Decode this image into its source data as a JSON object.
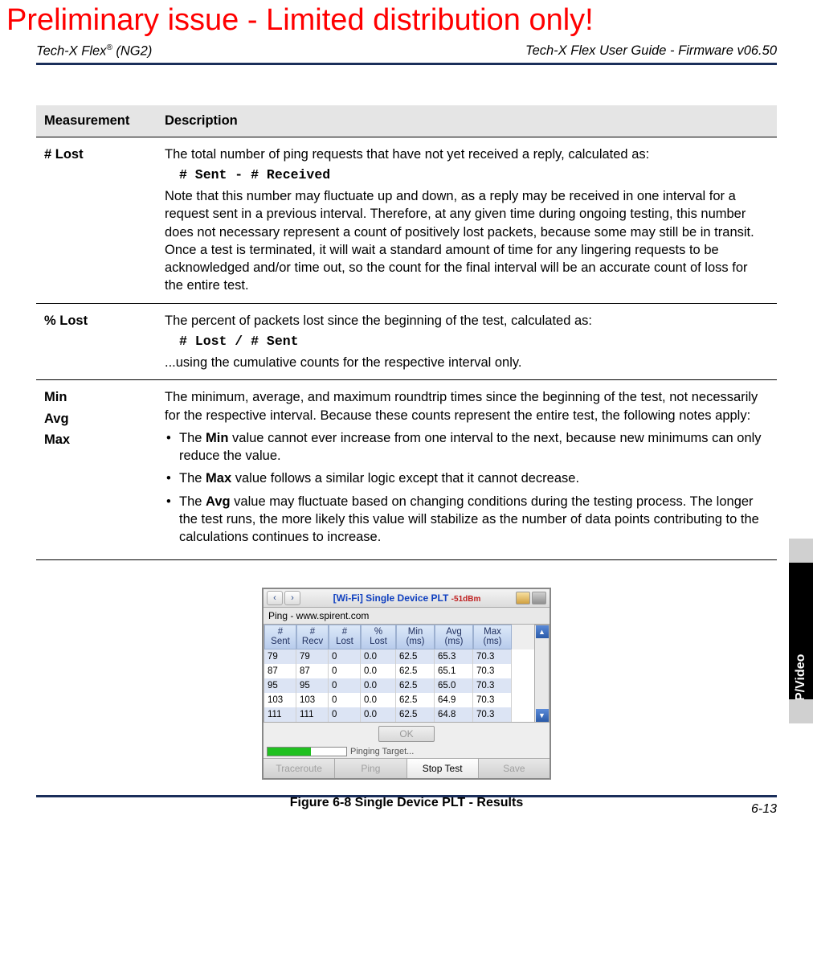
{
  "watermark": "Preliminary issue - Limited distribution only!",
  "header": {
    "left_prefix": " Tech-X Flex",
    "left_suffix": " (NG2)",
    "reg": "®",
    "right": "Tech-X Flex User Guide - Firmware v06.50"
  },
  "table": {
    "head_measurement": "Measurement",
    "head_description": "Description",
    "row1": {
      "label": "# Lost",
      "p1": "The total number of ping requests that have not yet received a reply, calculated as:",
      "code": "# Sent - # Received",
      "p2": "Note that this number may fluctuate up and down, as a reply may be received in one interval for a request sent in a previous interval. Therefore, at any given time during ongoing testing, this number does not necessary represent a count of positively lost packets, because some may still be in transit. Once a test is terminated, it will wait a standard amount of time for any lingering requests to be acknowledged and/or time out, so the count for the final interval will be an accurate count of loss for the entire test."
    },
    "row2": {
      "label": "% Lost",
      "p1": "The percent of packets lost since the beginning of the test, calculated as:",
      "code": "# Lost / # Sent",
      "p2": "...using the cumulative counts for the respective interval only."
    },
    "row3": {
      "l1": "Min",
      "l2": "Avg",
      "l3": "Max",
      "p1": "The minimum, average, and maximum roundtrip times since the beginning of the test, not necessarily for the respective interval. Because these counts represent the entire test, the following notes apply:",
      "b1a": "The ",
      "b1b": "Min",
      "b1c": " value cannot ever increase from one interval to the next, because new minimums can only reduce the value.",
      "b2a": "The ",
      "b2b": "Max",
      "b2c": " value follows a similar logic except that it cannot decrease.",
      "b3a": "The ",
      "b3b": "Avg",
      "b3c": " value may fluctuate based on changing conditions during the testing process. The longer the test runs, the more likely this value will stabilize as the number of data points contributing to the calculations continues to increase."
    }
  },
  "screenshot": {
    "title": "[Wi-Fi] Single Device PLT",
    "signal": "-51dBm",
    "subtitle": "Ping - www.spirent.com",
    "headers": {
      "h1a": "#",
      "h1b": "Sent",
      "h2a": "#",
      "h2b": "Recv",
      "h3a": "#",
      "h3b": "Lost",
      "h4a": "%",
      "h4b": "Lost",
      "h5a": "Min",
      "h5b": "(ms)",
      "h6a": "Avg",
      "h6b": "(ms)",
      "h7a": "Max",
      "h7b": "(ms)"
    },
    "rows": [
      {
        "c1": "79",
        "c2": "79",
        "c3": "0",
        "c4": "0.0",
        "c5": "62.5",
        "c6": "65.3",
        "c7": "70.3"
      },
      {
        "c1": "87",
        "c2": "87",
        "c3": "0",
        "c4": "0.0",
        "c5": "62.5",
        "c6": "65.1",
        "c7": "70.3"
      },
      {
        "c1": "95",
        "c2": "95",
        "c3": "0",
        "c4": "0.0",
        "c5": "62.5",
        "c6": "65.0",
        "c7": "70.3"
      },
      {
        "c1": "103",
        "c2": "103",
        "c3": "0",
        "c4": "0.0",
        "c5": "62.5",
        "c6": "64.9",
        "c7": "70.3"
      },
      {
        "c1": "111",
        "c2": "111",
        "c3": "0",
        "c4": "0.0",
        "c5": "62.5",
        "c6": "64.8",
        "c7": "70.3"
      }
    ],
    "ok": "OK",
    "progress_text": "Pinging Target...",
    "buttons": {
      "b1": "Traceroute",
      "b2": "Ping",
      "b3": "Stop Test",
      "b4": "Save"
    }
  },
  "figure_caption": "Figure 6-8  Single Device PLT - Results",
  "side_tab": "IP/Video",
  "page_number": "6-13"
}
